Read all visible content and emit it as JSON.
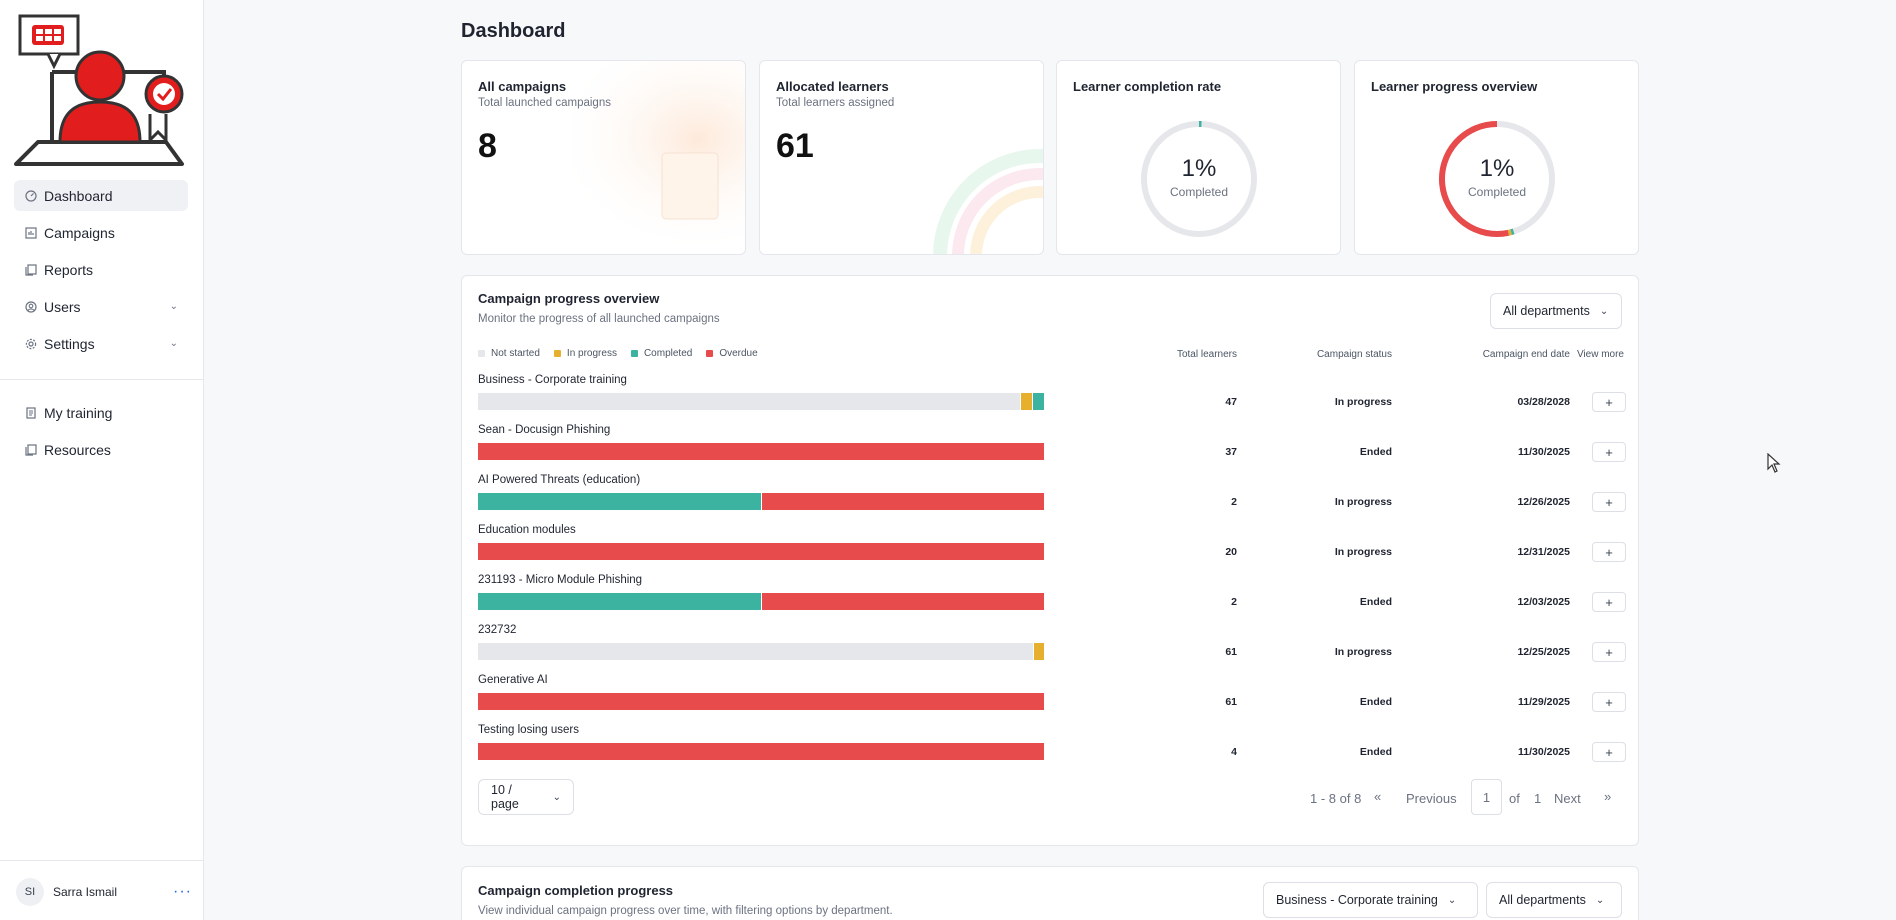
{
  "sidebar": {
    "items": [
      {
        "label": "Dashboard",
        "icon": "dashboard-icon",
        "active": true
      },
      {
        "label": "Campaigns",
        "icon": "campaigns-icon"
      },
      {
        "label": "Reports",
        "icon": "reports-icon"
      },
      {
        "label": "Users",
        "icon": "users-icon",
        "expandable": true
      },
      {
        "label": "Settings",
        "icon": "gear-icon",
        "expandable": true
      }
    ],
    "secondary": [
      {
        "label": "My training",
        "icon": "training-icon"
      },
      {
        "label": "Resources",
        "icon": "resources-icon"
      }
    ],
    "user": {
      "initials": "SI",
      "name": "Sarra Ismail",
      "menu_icon": "more-icon"
    }
  },
  "page": {
    "title": "Dashboard"
  },
  "stats": {
    "all_campaigns": {
      "title": "All campaigns",
      "subtitle": "Total launched campaigns",
      "value": "8"
    },
    "allocated_learners": {
      "title": "Allocated learners",
      "subtitle": "Total learners assigned",
      "value": "61"
    },
    "completion_rate": {
      "title": "Learner completion rate",
      "percent": "1%",
      "label": "Completed"
    },
    "progress_overview": {
      "title": "Learner progress overview",
      "percent": "1%",
      "label": "Completed"
    }
  },
  "campaign_overview": {
    "title": "Campaign progress overview",
    "subtitle": "Monitor the progress of all launched campaigns",
    "filter": "All departments",
    "legend": [
      {
        "label": "Not started",
        "color": "#e5e7eb"
      },
      {
        "label": "In progress",
        "color": "#e6b02e"
      },
      {
        "label": "Completed",
        "color": "#3bb3a0"
      },
      {
        "label": "Overdue",
        "color": "#e84b4b"
      }
    ],
    "columns": {
      "total": "Total learners",
      "status": "Campaign status",
      "end": "Campaign end date",
      "more": "View more"
    },
    "rows": [
      {
        "name": "Business - Corporate training",
        "total": "47",
        "status": "In progress",
        "end_date": "03/28/2028",
        "split": [
          0.958,
          0.021,
          0.021,
          0
        ]
      },
      {
        "name": "Sean - Docusign Phishing",
        "total": "37",
        "status": "Ended",
        "end_date": "11/30/2025",
        "split": [
          0,
          0,
          0,
          1
        ]
      },
      {
        "name": "AI Powered Threats (education)",
        "total": "2",
        "status": "In progress",
        "end_date": "12/26/2025",
        "split": [
          0,
          0,
          0.5,
          0.5
        ]
      },
      {
        "name": "Education modules",
        "total": "20",
        "status": "In progress",
        "end_date": "12/31/2025",
        "split": [
          0,
          0,
          0,
          1
        ]
      },
      {
        "name": "231193 - Micro Module Phishing",
        "total": "2",
        "status": "Ended",
        "end_date": "12/03/2025",
        "split": [
          0,
          0,
          0.5,
          0.5
        ]
      },
      {
        "name": "232732",
        "total": "61",
        "status": "In progress",
        "end_date": "12/25/2025",
        "split": [
          0.98,
          0.02,
          0,
          0
        ]
      },
      {
        "name": "Generative AI",
        "total": "61",
        "status": "Ended",
        "end_date": "11/29/2025",
        "split": [
          0,
          0,
          0,
          1
        ]
      },
      {
        "name": "Testing losing users",
        "total": "4",
        "status": "Ended",
        "end_date": "11/30/2025",
        "split": [
          0,
          0,
          0,
          1
        ]
      }
    ],
    "pagination": {
      "per_page": "10 / page",
      "range": "1 - 8 of 8",
      "previous": "Previous",
      "page": "1",
      "of": "of",
      "total_pages": "1",
      "next": "Next"
    }
  },
  "completion_progress": {
    "title": "Campaign completion progress",
    "subtitle": "View individual campaign progress over time, with filtering options by department.",
    "campaign_filter": "Business - Corporate training",
    "department_filter": "All departments"
  }
}
